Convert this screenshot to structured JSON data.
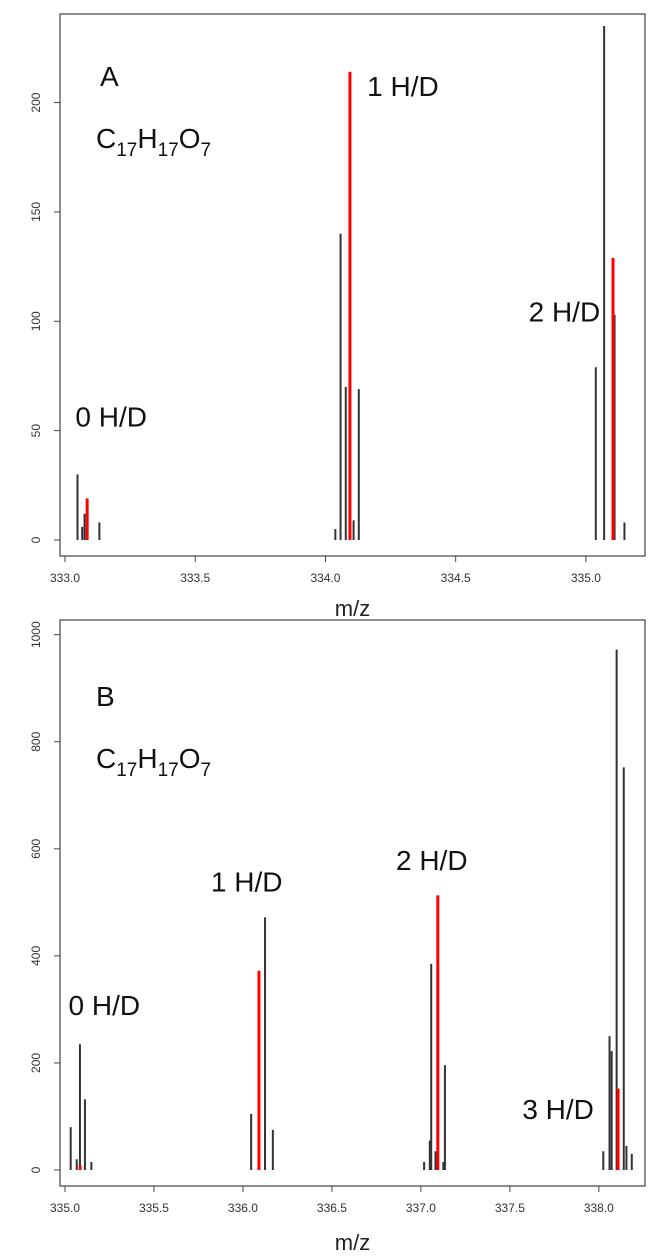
{
  "colors": {
    "observed": "#333333",
    "predicted": "#ff0000",
    "frame": "#444444"
  },
  "chart_data": [
    {
      "type": "bar",
      "panel_label": "A",
      "formula": {
        "c": "C",
        "c_n": "17",
        "h": "H",
        "h_n": "17",
        "o": "O",
        "o_n": "7"
      },
      "xlabel": "m/z",
      "ylabel": "",
      "xlim": [
        333.0,
        335.2
      ],
      "ylim": [
        0,
        225
      ],
      "xticks": [
        333.0,
        333.5,
        334.0,
        334.5,
        335.0
      ],
      "xtick_labels": [
        "333.0",
        "333.5",
        "334.0",
        "334.5",
        "335.0"
      ],
      "yticks": [
        0,
        50,
        100,
        150,
        200
      ],
      "ytick_labels": [
        "0",
        "50",
        "100",
        "150",
        "200"
      ],
      "annotations": [
        {
          "text": "0 H/D",
          "x": 333.04,
          "y": 52
        },
        {
          "text": "1 H/D",
          "x": 334.16,
          "y": 203
        },
        {
          "text": "2 H/D",
          "x": 334.78,
          "y": 100
        }
      ],
      "series": [
        {
          "name": "",
          "color": "#333333",
          "points": [
            {
              "x": 333.048,
              "y": 30
            },
            {
              "x": 333.066,
              "y": 6
            },
            {
              "x": 333.075,
              "y": 12
            },
            {
              "x": 333.132,
              "y": 8
            },
            {
              "x": 334.038,
              "y": 5
            },
            {
              "x": 334.058,
              "y": 140
            },
            {
              "x": 334.078,
              "y": 70
            },
            {
              "x": 334.108,
              "y": 9
            },
            {
              "x": 334.128,
              "y": 69
            },
            {
              "x": 335.038,
              "y": 79
            },
            {
              "x": 335.07,
              "y": 235
            },
            {
              "x": 335.11,
              "y": 103
            },
            {
              "x": 335.148,
              "y": 8
            }
          ]
        },
        {
          "name": "",
          "color": "#ff0000",
          "points": [
            {
              "x": 333.085,
              "y": 19
            },
            {
              "x": 334.094,
              "y": 214
            },
            {
              "x": 335.104,
              "y": 129
            }
          ]
        }
      ]
    },
    {
      "type": "bar",
      "panel_label": "B",
      "formula": {
        "c": "C",
        "c_n": "17",
        "h": "H",
        "h_n": "17",
        "o": "O",
        "o_n": "7"
      },
      "xlabel": "m/z",
      "ylabel": "",
      "xlim": [
        335.0,
        338.22
      ],
      "ylim": [
        0,
        1000
      ],
      "xticks": [
        335.0,
        335.5,
        336.0,
        336.5,
        337.0,
        337.5,
        338.0
      ],
      "xtick_labels": [
        "335.0",
        "335.5",
        "336.0",
        "336.5",
        "337.0",
        "337.5",
        "338.0"
      ],
      "yticks": [
        0,
        200,
        400,
        600,
        800,
        1000
      ],
      "ytick_labels": [
        "0",
        "200",
        "400",
        "600",
        "800",
        "1000"
      ],
      "annotations": [
        {
          "text": "0 H/D",
          "x": 335.02,
          "y": 290
        },
        {
          "text": "1 H/D",
          "x": 335.82,
          "y": 520
        },
        {
          "text": "2 H/D",
          "x": 336.86,
          "y": 560
        },
        {
          "text": "3 H/D",
          "x": 337.57,
          "y": 95
        }
      ],
      "series": [
        {
          "name": "",
          "color": "#333333",
          "points": [
            {
              "x": 335.032,
              "y": 80
            },
            {
              "x": 335.066,
              "y": 20
            },
            {
              "x": 335.084,
              "y": 235
            },
            {
              "x": 335.112,
              "y": 132
            },
            {
              "x": 335.148,
              "y": 15
            },
            {
              "x": 336.046,
              "y": 105
            },
            {
              "x": 336.124,
              "y": 472
            },
            {
              "x": 336.168,
              "y": 75
            },
            {
              "x": 337.018,
              "y": 15
            },
            {
              "x": 337.05,
              "y": 55
            },
            {
              "x": 337.058,
              "y": 385
            },
            {
              "x": 337.082,
              "y": 35
            },
            {
              "x": 337.126,
              "y": 15
            },
            {
              "x": 337.135,
              "y": 196
            },
            {
              "x": 338.025,
              "y": 35
            },
            {
              "x": 338.06,
              "y": 250
            },
            {
              "x": 338.072,
              "y": 222
            },
            {
              "x": 338.1,
              "y": 972
            },
            {
              "x": 338.14,
              "y": 752
            },
            {
              "x": 338.155,
              "y": 45
            },
            {
              "x": 338.185,
              "y": 30
            }
          ]
        },
        {
          "name": "",
          "color": "#ff0000",
          "points": [
            {
              "x": 335.085,
              "y": 8
            },
            {
              "x": 336.09,
              "y": 372
            },
            {
              "x": 337.095,
              "y": 513
            },
            {
              "x": 338.108,
              "y": 152
            }
          ]
        }
      ]
    }
  ]
}
